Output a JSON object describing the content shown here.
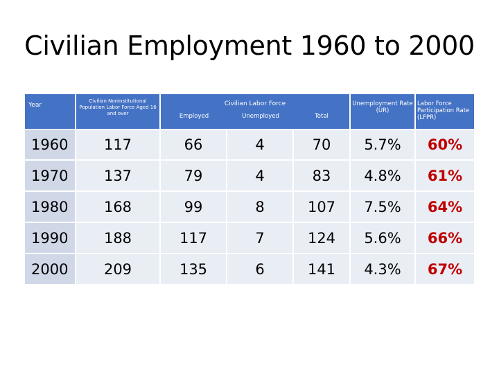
{
  "title": "Civilian Employment 1960 to 2000",
  "header": {
    "year": "Year",
    "population": "Civilian Noninstitutional Population Labor Force Aged 16 and over",
    "labor_force": "Civilian Labor Force",
    "employed": "Employed",
    "unemployed": "Unemployed",
    "total": "Total",
    "ur": "Unemployment Rate (UR)",
    "lfpr": "Labor Force Participation Rate (LFPR)"
  },
  "rows": [
    {
      "year": "1960",
      "population": "117",
      "employed": "66",
      "unemployed": "4",
      "total": "70",
      "ur": "5.7%",
      "lfpr": "60%"
    },
    {
      "year": "1970",
      "population": "137",
      "employed": "79",
      "unemployed": "4",
      "total": "83",
      "ur": "4.8%",
      "lfpr": "61%"
    },
    {
      "year": "1980",
      "population": "168",
      "employed": "99",
      "unemployed": "8",
      "total": "107",
      "ur": "7.5%",
      "lfpr": "64%"
    },
    {
      "year": "1990",
      "population": "188",
      "employed": "117",
      "unemployed": "7",
      "total": "124",
      "ur": "5.6%",
      "lfpr": "66%"
    },
    {
      "year": "2000",
      "population": "209",
      "employed": "135",
      "unemployed": "6",
      "total": "141",
      "ur": "4.3%",
      "lfpr": "67%"
    }
  ],
  "colors": {
    "header_bg": "#4472c4",
    "year_cell_bg": "#d0d8e8",
    "cell_bg": "#e9edf4",
    "lfpr_text": "#c00000"
  }
}
